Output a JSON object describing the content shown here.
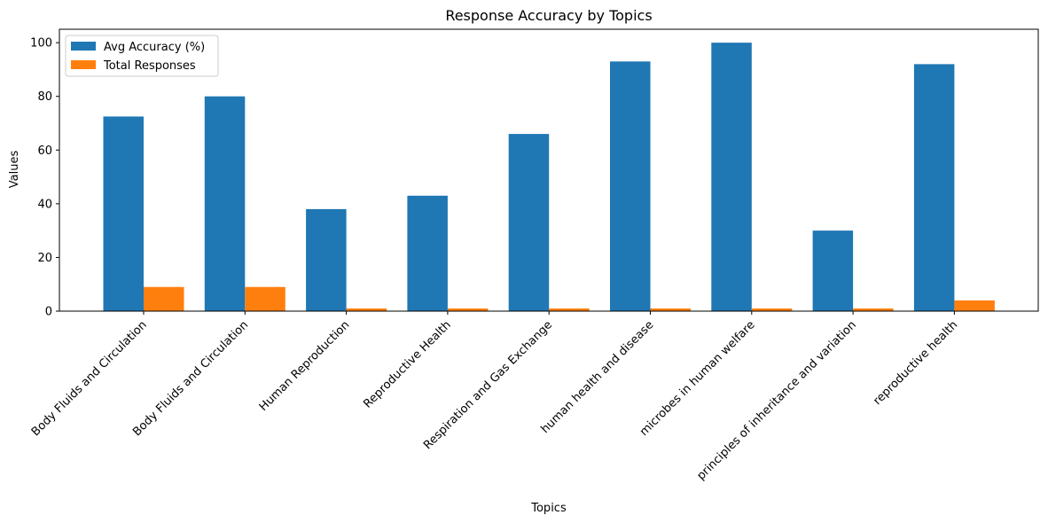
{
  "chart_data": {
    "type": "bar",
    "title": "Response Accuracy by Topics",
    "xlabel": "Topics",
    "ylabel": "Values",
    "ylim": [
      0,
      105
    ],
    "yticks": [
      0,
      20,
      40,
      60,
      80,
      100
    ],
    "categories": [
      "Body Fluids and Circulation",
      "Body Fluids and Circulation",
      "Human Reproduction",
      "Reproductive Health",
      "Respiration and Gas Exchange",
      "human health and disease",
      "microbes in human welfare",
      "principles of inheritance and variation",
      "reproductive health"
    ],
    "series": [
      {
        "name": "Avg Accuracy (%)",
        "color": "#1f77b4",
        "values": [
          72.5,
          80,
          38,
          43,
          66,
          93,
          100,
          30,
          92
        ]
      },
      {
        "name": "Total Responses",
        "color": "#ff7f0e",
        "values": [
          9,
          9,
          1,
          1,
          1,
          1,
          1,
          1,
          4
        ]
      }
    ],
    "legend_position": "top-left",
    "grid": false
  }
}
